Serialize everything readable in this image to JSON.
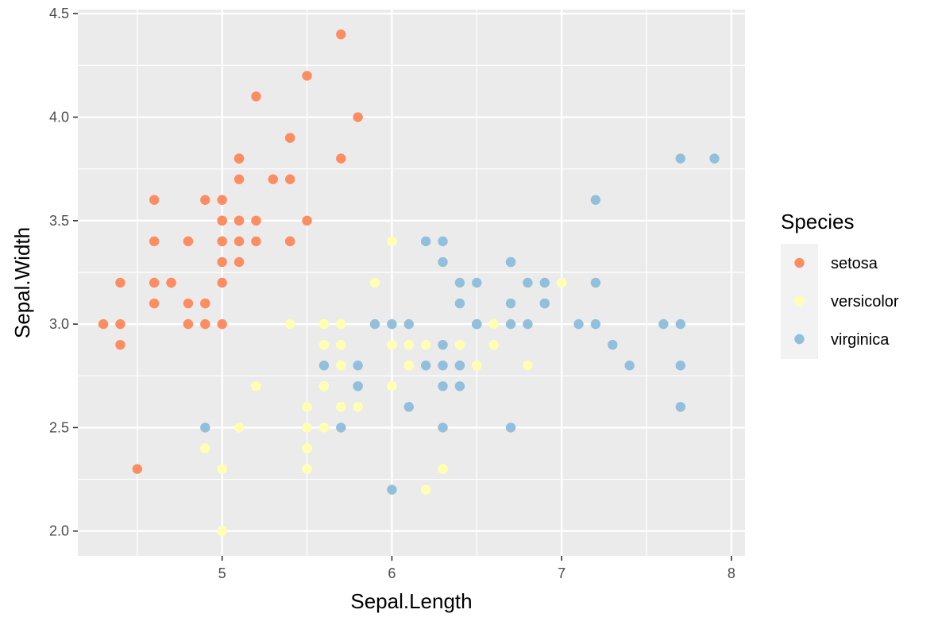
{
  "chart_data": {
    "type": "scatter",
    "xlabel": "Sepal.Length",
    "ylabel": "Sepal.Width",
    "xlim": [
      4.15,
      8.08
    ],
    "ylim": [
      1.88,
      4.52
    ],
    "x_ticks": [
      5,
      6,
      7,
      8
    ],
    "x_tick_labels": [
      "5",
      "6",
      "7",
      "8"
    ],
    "y_ticks": [
      2.0,
      2.5,
      3.0,
      3.5,
      4.0,
      4.5
    ],
    "y_tick_labels": [
      "2.0",
      "2.5",
      "3.0",
      "3.5",
      "4.0",
      "4.5"
    ],
    "grid": true,
    "legend": {
      "title": "Species",
      "position": "right"
    },
    "series": [
      {
        "name": "setosa",
        "color": "#fc8d62",
        "points": [
          [
            5.1,
            3.5
          ],
          [
            4.9,
            3.0
          ],
          [
            4.7,
            3.2
          ],
          [
            4.6,
            3.1
          ],
          [
            5.0,
            3.6
          ],
          [
            5.4,
            3.9
          ],
          [
            4.6,
            3.4
          ],
          [
            5.0,
            3.4
          ],
          [
            4.4,
            2.9
          ],
          [
            4.9,
            3.1
          ],
          [
            5.4,
            3.7
          ],
          [
            4.8,
            3.4
          ],
          [
            4.8,
            3.0
          ],
          [
            4.3,
            3.0
          ],
          [
            5.8,
            4.0
          ],
          [
            5.7,
            4.4
          ],
          [
            5.4,
            3.9
          ],
          [
            5.1,
            3.5
          ],
          [
            5.7,
            3.8
          ],
          [
            5.1,
            3.8
          ],
          [
            5.4,
            3.4
          ],
          [
            5.1,
            3.7
          ],
          [
            4.6,
            3.6
          ],
          [
            5.1,
            3.3
          ],
          [
            4.8,
            3.4
          ],
          [
            5.0,
            3.0
          ],
          [
            5.0,
            3.4
          ],
          [
            5.2,
            3.5
          ],
          [
            5.2,
            3.4
          ],
          [
            4.7,
            3.2
          ],
          [
            4.8,
            3.1
          ],
          [
            5.4,
            3.4
          ],
          [
            5.2,
            4.1
          ],
          [
            5.5,
            4.2
          ],
          [
            4.9,
            3.1
          ],
          [
            5.0,
            3.2
          ],
          [
            5.5,
            3.5
          ],
          [
            4.9,
            3.6
          ],
          [
            4.4,
            3.0
          ],
          [
            5.1,
            3.4
          ],
          [
            5.0,
            3.5
          ],
          [
            4.5,
            2.3
          ],
          [
            4.4,
            3.2
          ],
          [
            5.0,
            3.5
          ],
          [
            5.1,
            3.8
          ],
          [
            4.8,
            3.0
          ],
          [
            5.1,
            3.8
          ],
          [
            4.6,
            3.2
          ],
          [
            5.3,
            3.7
          ],
          [
            5.0,
            3.3
          ]
        ]
      },
      {
        "name": "versicolor",
        "color": "#ffffb3",
        "points": [
          [
            7.0,
            3.2
          ],
          [
            6.4,
            3.2
          ],
          [
            6.9,
            3.1
          ],
          [
            5.5,
            2.3
          ],
          [
            6.5,
            2.8
          ],
          [
            5.7,
            2.8
          ],
          [
            6.3,
            3.3
          ],
          [
            4.9,
            2.4
          ],
          [
            6.6,
            2.9
          ],
          [
            5.2,
            2.7
          ],
          [
            5.0,
            2.0
          ],
          [
            5.9,
            3.0
          ],
          [
            6.0,
            2.2
          ],
          [
            6.1,
            2.9
          ],
          [
            5.6,
            2.9
          ],
          [
            6.7,
            3.1
          ],
          [
            5.6,
            3.0
          ],
          [
            5.8,
            2.7
          ],
          [
            6.2,
            2.2
          ],
          [
            5.6,
            2.5
          ],
          [
            5.9,
            3.2
          ],
          [
            6.1,
            2.8
          ],
          [
            6.3,
            2.5
          ],
          [
            6.1,
            2.8
          ],
          [
            6.4,
            2.9
          ],
          [
            6.6,
            3.0
          ],
          [
            6.8,
            2.8
          ],
          [
            6.7,
            3.0
          ],
          [
            6.0,
            2.9
          ],
          [
            5.7,
            2.6
          ],
          [
            5.5,
            2.4
          ],
          [
            5.5,
            2.4
          ],
          [
            5.8,
            2.7
          ],
          [
            6.0,
            2.7
          ],
          [
            5.4,
            3.0
          ],
          [
            6.0,
            3.4
          ],
          [
            6.7,
            3.1
          ],
          [
            6.3,
            2.3
          ],
          [
            5.6,
            3.0
          ],
          [
            5.5,
            2.5
          ],
          [
            5.5,
            2.6
          ],
          [
            6.1,
            3.0
          ],
          [
            5.8,
            2.6
          ],
          [
            5.0,
            2.3
          ],
          [
            5.6,
            2.7
          ],
          [
            5.7,
            3.0
          ],
          [
            5.7,
            2.9
          ],
          [
            6.2,
            2.9
          ],
          [
            5.1,
            2.5
          ],
          [
            5.7,
            2.8
          ]
        ]
      },
      {
        "name": "virginica",
        "color": "#92bfdb",
        "points": [
          [
            6.3,
            3.3
          ],
          [
            5.8,
            2.7
          ],
          [
            7.1,
            3.0
          ],
          [
            6.3,
            2.9
          ],
          [
            6.5,
            3.0
          ],
          [
            7.6,
            3.0
          ],
          [
            4.9,
            2.5
          ],
          [
            7.3,
            2.9
          ],
          [
            6.7,
            2.5
          ],
          [
            7.2,
            3.6
          ],
          [
            6.5,
            3.2
          ],
          [
            6.4,
            2.7
          ],
          [
            6.8,
            3.0
          ],
          [
            5.7,
            2.5
          ],
          [
            5.8,
            2.8
          ],
          [
            6.4,
            3.2
          ],
          [
            6.5,
            3.0
          ],
          [
            7.7,
            3.8
          ],
          [
            7.7,
            2.6
          ],
          [
            6.0,
            2.2
          ],
          [
            6.9,
            3.2
          ],
          [
            5.6,
            2.8
          ],
          [
            7.7,
            2.8
          ],
          [
            6.3,
            2.7
          ],
          [
            6.7,
            3.3
          ],
          [
            7.2,
            3.2
          ],
          [
            6.2,
            2.8
          ],
          [
            6.1,
            3.0
          ],
          [
            6.4,
            2.8
          ],
          [
            7.2,
            3.0
          ],
          [
            7.4,
            2.8
          ],
          [
            7.9,
            3.8
          ],
          [
            6.4,
            2.8
          ],
          [
            6.3,
            2.8
          ],
          [
            6.1,
            2.6
          ],
          [
            7.7,
            3.0
          ],
          [
            6.3,
            3.4
          ],
          [
            6.4,
            3.1
          ],
          [
            6.0,
            3.0
          ],
          [
            6.9,
            3.1
          ],
          [
            6.7,
            3.1
          ],
          [
            6.9,
            3.1
          ],
          [
            5.8,
            2.7
          ],
          [
            6.8,
            3.2
          ],
          [
            6.7,
            3.3
          ],
          [
            6.7,
            3.0
          ],
          [
            6.3,
            2.5
          ],
          [
            6.5,
            3.0
          ],
          [
            6.2,
            3.4
          ],
          [
            5.9,
            3.0
          ]
        ]
      }
    ]
  }
}
